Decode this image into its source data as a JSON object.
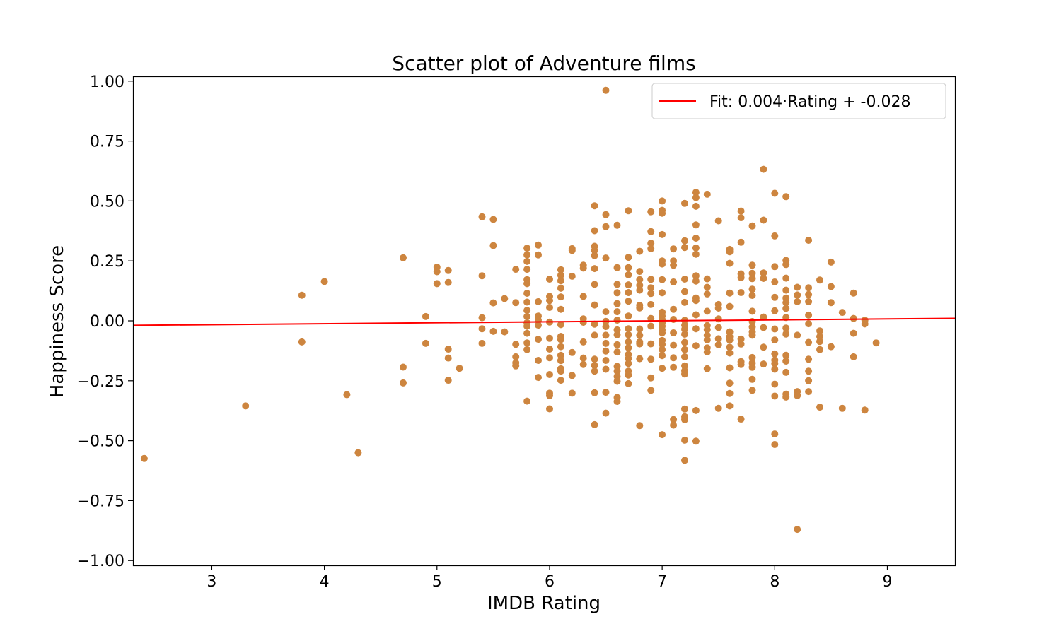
{
  "chart_data": {
    "type": "scatter",
    "title": "Scatter plot of Adventure films",
    "xlabel": "IMDB Rating",
    "ylabel": "Happiness Score",
    "xlim": [
      2.3,
      9.6
    ],
    "ylim": [
      -1.02,
      1.02
    ],
    "x_ticks": [
      3,
      4,
      5,
      6,
      7,
      8,
      9
    ],
    "x_tick_labels": [
      "3",
      "4",
      "5",
      "6",
      "7",
      "8",
      "9"
    ],
    "y_ticks": [
      1.0,
      0.75,
      0.5,
      0.25,
      0.0,
      -0.25,
      -0.5,
      -0.75,
      -1.0
    ],
    "y_tick_labels": [
      "1.00",
      "0.75",
      "0.50",
      "0.25",
      "0.00",
      "−0.25",
      "−0.50",
      "−0.75",
      "−1.00"
    ],
    "grid": false,
    "legend_position": "top-right",
    "marker_color": "#cd853f",
    "fit_line": {
      "label": "Fit: 0.004·Rating + -0.028",
      "slope": 0.004,
      "intercept": -0.028,
      "color": "#ff0000"
    },
    "points": [
      [
        2.4,
        -0.574
      ],
      [
        3.3,
        -0.355
      ],
      [
        3.8,
        0.107
      ],
      [
        3.8,
        -0.088
      ],
      [
        4.0,
        0.164
      ],
      [
        4.2,
        -0.308
      ],
      [
        4.3,
        -0.55
      ],
      [
        4.7,
        0.263
      ],
      [
        4.7,
        -0.193
      ],
      [
        4.7,
        -0.259
      ],
      [
        4.9,
        0.018
      ],
      [
        4.9,
        -0.094
      ],
      [
        5.0,
        0.224
      ],
      [
        5.0,
        0.205
      ],
      [
        5.0,
        0.155
      ],
      [
        5.1,
        0.21
      ],
      [
        5.1,
        0.16
      ],
      [
        5.1,
        -0.118
      ],
      [
        5.1,
        -0.155
      ],
      [
        5.1,
        -0.248
      ],
      [
        5.2,
        -0.198
      ],
      [
        5.4,
        0.434
      ],
      [
        5.4,
        0.188
      ],
      [
        5.4,
        0.013
      ],
      [
        5.4,
        -0.033
      ],
      [
        5.4,
        -0.094
      ],
      [
        5.5,
        0.423
      ],
      [
        5.5,
        0.314
      ],
      [
        5.5,
        0.075
      ],
      [
        5.5,
        -0.044
      ],
      [
        5.6,
        0.093
      ],
      [
        5.6,
        -0.046
      ],
      [
        5.7,
        0.215
      ],
      [
        5.7,
        0.076
      ],
      [
        5.7,
        -0.098
      ],
      [
        5.7,
        -0.15
      ],
      [
        5.7,
        -0.175
      ],
      [
        5.7,
        -0.188
      ],
      [
        5.8,
        0.303
      ],
      [
        5.8,
        0.275
      ],
      [
        5.8,
        0.248
      ],
      [
        5.8,
        0.215
      ],
      [
        5.8,
        0.172
      ],
      [
        5.8,
        0.155
      ],
      [
        5.8,
        0.115
      ],
      [
        5.8,
        0.078
      ],
      [
        5.8,
        0.044
      ],
      [
        5.8,
        0.018
      ],
      [
        5.8,
        -0.008
      ],
      [
        5.8,
        -0.022
      ],
      [
        5.8,
        -0.052
      ],
      [
        5.8,
        -0.092
      ],
      [
        5.8,
        -0.12
      ],
      [
        5.8,
        -0.335
      ],
      [
        5.9,
        0.316
      ],
      [
        5.9,
        0.275
      ],
      [
        5.9,
        0.08
      ],
      [
        5.9,
        0.02
      ],
      [
        5.9,
        0.003
      ],
      [
        5.9,
        -0.018
      ],
      [
        5.9,
        -0.077
      ],
      [
        5.9,
        -0.165
      ],
      [
        5.9,
        -0.236
      ],
      [
        6.0,
        0.174
      ],
      [
        6.0,
        0.102
      ],
      [
        6.0,
        0.085
      ],
      [
        6.0,
        0.056
      ],
      [
        6.0,
        -0.005
      ],
      [
        6.0,
        -0.073
      ],
      [
        6.0,
        -0.118
      ],
      [
        6.0,
        -0.154
      ],
      [
        6.0,
        -0.224
      ],
      [
        6.0,
        -0.302
      ],
      [
        6.0,
        -0.312
      ],
      [
        6.0,
        -0.367
      ],
      [
        6.1,
        0.213
      ],
      [
        6.1,
        0.19
      ],
      [
        6.1,
        0.167
      ],
      [
        6.1,
        0.136
      ],
      [
        6.1,
        0.1
      ],
      [
        6.1,
        0.048
      ],
      [
        6.1,
        -0.016
      ],
      [
        6.1,
        -0.065
      ],
      [
        6.1,
        -0.078
      ],
      [
        6.1,
        -0.108
      ],
      [
        6.1,
        -0.144
      ],
      [
        6.1,
        -0.166
      ],
      [
        6.1,
        -0.2
      ],
      [
        6.1,
        -0.21
      ],
      [
        6.1,
        -0.248
      ],
      [
        6.2,
        0.301
      ],
      [
        6.2,
        0.294
      ],
      [
        6.2,
        0.186
      ],
      [
        6.2,
        -0.132
      ],
      [
        6.2,
        -0.228
      ],
      [
        6.2,
        -0.302
      ],
      [
        6.3,
        0.232
      ],
      [
        6.3,
        0.22
      ],
      [
        6.3,
        0.102
      ],
      [
        6.3,
        0.008
      ],
      [
        6.3,
        -0.006
      ],
      [
        6.3,
        -0.088
      ],
      [
        6.3,
        -0.155
      ],
      [
        6.3,
        -0.182
      ],
      [
        6.4,
        0.48
      ],
      [
        6.4,
        0.376
      ],
      [
        6.4,
        0.311
      ],
      [
        6.4,
        0.294
      ],
      [
        6.4,
        0.272
      ],
      [
        6.4,
        0.218
      ],
      [
        6.4,
        0.152
      ],
      [
        6.4,
        0.066
      ],
      [
        6.4,
        -0.014
      ],
      [
        6.4,
        -0.06
      ],
      [
        6.4,
        -0.16
      ],
      [
        6.4,
        -0.186
      ],
      [
        6.4,
        -0.21
      ],
      [
        6.4,
        -0.3
      ],
      [
        6.4,
        -0.433
      ],
      [
        6.5,
        0.962
      ],
      [
        6.5,
        0.443
      ],
      [
        6.5,
        0.393
      ],
      [
        6.5,
        0.262
      ],
      [
        6.5,
        0.038
      ],
      [
        6.5,
        -0.002
      ],
      [
        6.5,
        -0.024
      ],
      [
        6.5,
        -0.06
      ],
      [
        6.5,
        -0.094
      ],
      [
        6.5,
        -0.126
      ],
      [
        6.5,
        -0.165
      ],
      [
        6.5,
        -0.202
      ],
      [
        6.5,
        -0.298
      ],
      [
        6.5,
        -0.385
      ],
      [
        6.6,
        0.399
      ],
      [
        6.6,
        0.222
      ],
      [
        6.6,
        0.152
      ],
      [
        6.6,
        0.117
      ],
      [
        6.6,
        0.072
      ],
      [
        6.6,
        0.038
      ],
      [
        6.6,
        0.003
      ],
      [
        6.6,
        -0.038
      ],
      [
        6.6,
        -0.058
      ],
      [
        6.6,
        -0.1
      ],
      [
        6.6,
        -0.13
      ],
      [
        6.6,
        -0.19
      ],
      [
        6.6,
        -0.21
      ],
      [
        6.6,
        -0.232
      ],
      [
        6.6,
        -0.252
      ],
      [
        6.6,
        -0.32
      ],
      [
        6.6,
        -0.336
      ],
      [
        6.7,
        0.459
      ],
      [
        6.7,
        0.265
      ],
      [
        6.7,
        0.222
      ],
      [
        6.7,
        0.192
      ],
      [
        6.7,
        0.15
      ],
      [
        6.7,
        0.118
      ],
      [
        6.7,
        0.082
      ],
      [
        6.7,
        0.02
      ],
      [
        6.7,
        -0.033
      ],
      [
        6.7,
        -0.058
      ],
      [
        6.7,
        -0.088
      ],
      [
        6.7,
        -0.112
      ],
      [
        6.7,
        -0.14
      ],
      [
        6.7,
        -0.157
      ],
      [
        6.7,
        -0.178
      ],
      [
        6.7,
        -0.21
      ],
      [
        6.7,
        -0.226
      ],
      [
        6.7,
        -0.262
      ],
      [
        6.8,
        0.29
      ],
      [
        6.8,
        0.206
      ],
      [
        6.8,
        0.172
      ],
      [
        6.8,
        0.148
      ],
      [
        6.8,
        0.128
      ],
      [
        6.8,
        0.065
      ],
      [
        6.8,
        0.054
      ],
      [
        6.8,
        -0.034
      ],
      [
        6.8,
        -0.06
      ],
      [
        6.8,
        -0.088
      ],
      [
        6.8,
        -0.096
      ],
      [
        6.8,
        -0.158
      ],
      [
        6.8,
        -0.437
      ],
      [
        6.9,
        0.455
      ],
      [
        6.9,
        0.372
      ],
      [
        6.9,
        0.324
      ],
      [
        6.9,
        0.301
      ],
      [
        6.9,
        0.173
      ],
      [
        6.9,
        0.138
      ],
      [
        6.9,
        0.114
      ],
      [
        6.9,
        0.068
      ],
      [
        6.9,
        0.01
      ],
      [
        6.9,
        -0.022
      ],
      [
        6.9,
        -0.096
      ],
      [
        6.9,
        -0.16
      ],
      [
        6.9,
        -0.238
      ],
      [
        6.9,
        -0.29
      ],
      [
        7.0,
        0.5
      ],
      [
        7.0,
        0.461
      ],
      [
        7.0,
        0.449
      ],
      [
        7.0,
        0.36
      ],
      [
        7.0,
        0.25
      ],
      [
        7.0,
        0.237
      ],
      [
        7.0,
        0.172
      ],
      [
        7.0,
        0.117
      ],
      [
        7.0,
        0.036
      ],
      [
        7.0,
        0.02
      ],
      [
        7.0,
        0.005
      ],
      [
        7.0,
        -0.008
      ],
      [
        7.0,
        -0.022
      ],
      [
        7.0,
        -0.038
      ],
      [
        7.0,
        -0.05
      ],
      [
        7.0,
        -0.082
      ],
      [
        7.0,
        -0.098
      ],
      [
        7.0,
        -0.12
      ],
      [
        7.0,
        -0.145
      ],
      [
        7.0,
        -0.198
      ],
      [
        7.0,
        -0.475
      ],
      [
        7.1,
        0.3
      ],
      [
        7.1,
        0.25
      ],
      [
        7.1,
        0.232
      ],
      [
        7.1,
        0.162
      ],
      [
        7.1,
        0.048
      ],
      [
        7.1,
        0.006
      ],
      [
        7.1,
        -0.05
      ],
      [
        7.1,
        -0.102
      ],
      [
        7.1,
        -0.154
      ],
      [
        7.1,
        -0.194
      ],
      [
        7.1,
        -0.412
      ],
      [
        7.1,
        -0.435
      ],
      [
        7.2,
        0.49
      ],
      [
        7.2,
        0.334
      ],
      [
        7.2,
        0.306
      ],
      [
        7.2,
        0.174
      ],
      [
        7.2,
        0.122
      ],
      [
        7.2,
        0.077
      ],
      [
        7.2,
        0.002
      ],
      [
        7.2,
        -0.018
      ],
      [
        7.2,
        -0.035
      ],
      [
        7.2,
        -0.056
      ],
      [
        7.2,
        -0.09
      ],
      [
        7.2,
        -0.12
      ],
      [
        7.2,
        -0.15
      ],
      [
        7.2,
        -0.188
      ],
      [
        7.2,
        -0.208
      ],
      [
        7.2,
        -0.222
      ],
      [
        7.2,
        -0.368
      ],
      [
        7.2,
        -0.4
      ],
      [
        7.2,
        -0.412
      ],
      [
        7.2,
        -0.498
      ],
      [
        7.2,
        -0.582
      ],
      [
        7.3,
        0.536
      ],
      [
        7.3,
        0.514
      ],
      [
        7.3,
        0.478
      ],
      [
        7.3,
        0.4
      ],
      [
        7.3,
        0.345
      ],
      [
        7.3,
        0.304
      ],
      [
        7.3,
        0.278
      ],
      [
        7.3,
        0.188
      ],
      [
        7.3,
        0.166
      ],
      [
        7.3,
        0.095
      ],
      [
        7.3,
        0.085
      ],
      [
        7.3,
        0.025
      ],
      [
        7.3,
        -0.033
      ],
      [
        7.3,
        -0.104
      ],
      [
        7.3,
        -0.374
      ],
      [
        7.3,
        -0.502
      ],
      [
        7.4,
        0.528
      ],
      [
        7.4,
        0.175
      ],
      [
        7.4,
        0.14
      ],
      [
        7.4,
        0.112
      ],
      [
        7.4,
        0.04
      ],
      [
        7.4,
        -0.02
      ],
      [
        7.4,
        -0.037
      ],
      [
        7.4,
        -0.06
      ],
      [
        7.4,
        -0.08
      ],
      [
        7.4,
        -0.113
      ],
      [
        7.4,
        -0.13
      ],
      [
        7.4,
        -0.2
      ],
      [
        7.5,
        0.417
      ],
      [
        7.5,
        0.068
      ],
      [
        7.5,
        0.053
      ],
      [
        7.5,
        0.008
      ],
      [
        7.5,
        -0.028
      ],
      [
        7.5,
        -0.075
      ],
      [
        7.5,
        -0.1
      ],
      [
        7.5,
        -0.365
      ],
      [
        7.6,
        0.298
      ],
      [
        7.6,
        0.288
      ],
      [
        7.6,
        0.24
      ],
      [
        7.6,
        0.116
      ],
      [
        7.6,
        0.06
      ],
      [
        7.6,
        -0.046
      ],
      [
        7.6,
        -0.066
      ],
      [
        7.6,
        -0.08
      ],
      [
        7.6,
        -0.11
      ],
      [
        7.6,
        -0.134
      ],
      [
        7.6,
        -0.196
      ],
      [
        7.6,
        -0.26
      ],
      [
        7.6,
        -0.303
      ],
      [
        7.6,
        -0.355
      ],
      [
        7.7,
        0.458
      ],
      [
        7.7,
        0.43
      ],
      [
        7.7,
        0.328
      ],
      [
        7.7,
        0.196
      ],
      [
        7.7,
        0.18
      ],
      [
        7.7,
        0.118
      ],
      [
        7.7,
        -0.076
      ],
      [
        7.7,
        -0.097
      ],
      [
        7.7,
        -0.17
      ],
      [
        7.7,
        -0.182
      ],
      [
        7.7,
        -0.41
      ],
      [
        7.8,
        0.396
      ],
      [
        7.8,
        0.232
      ],
      [
        7.8,
        0.198
      ],
      [
        7.8,
        0.176
      ],
      [
        7.8,
        0.132
      ],
      [
        7.8,
        0.106
      ],
      [
        7.8,
        0.04
      ],
      [
        7.8,
        -0.003
      ],
      [
        7.8,
        -0.026
      ],
      [
        7.8,
        -0.046
      ],
      [
        7.8,
        -0.06
      ],
      [
        7.8,
        -0.153
      ],
      [
        7.8,
        -0.176
      ],
      [
        7.8,
        -0.194
      ],
      [
        7.8,
        -0.244
      ],
      [
        7.8,
        -0.29
      ],
      [
        7.9,
        0.632
      ],
      [
        7.9,
        0.42
      ],
      [
        7.9,
        0.2
      ],
      [
        7.9,
        0.177
      ],
      [
        7.9,
        0.016
      ],
      [
        7.9,
        -0.028
      ],
      [
        7.9,
        -0.11
      ],
      [
        7.9,
        -0.18
      ],
      [
        8.0,
        0.532
      ],
      [
        8.0,
        0.354
      ],
      [
        8.0,
        0.226
      ],
      [
        8.0,
        0.162
      ],
      [
        8.0,
        0.098
      ],
      [
        8.0,
        0.042
      ],
      [
        8.0,
        -0.034
      ],
      [
        8.0,
        -0.08
      ],
      [
        8.0,
        -0.138
      ],
      [
        8.0,
        -0.164
      ],
      [
        8.0,
        -0.178
      ],
      [
        8.0,
        -0.202
      ],
      [
        8.0,
        -0.264
      ],
      [
        8.0,
        -0.314
      ],
      [
        8.0,
        -0.472
      ],
      [
        8.0,
        -0.516
      ],
      [
        8.1,
        0.518
      ],
      [
        8.1,
        0.252
      ],
      [
        8.1,
        0.235
      ],
      [
        8.1,
        0.178
      ],
      [
        8.1,
        0.128
      ],
      [
        8.1,
        0.095
      ],
      [
        8.1,
        0.076
      ],
      [
        8.1,
        0.052
      ],
      [
        8.1,
        0.014
      ],
      [
        8.1,
        -0.03
      ],
      [
        8.1,
        -0.055
      ],
      [
        8.1,
        -0.144
      ],
      [
        8.1,
        -0.168
      ],
      [
        8.1,
        -0.215
      ],
      [
        8.1,
        -0.306
      ],
      [
        8.1,
        -0.318
      ],
      [
        8.2,
        0.14
      ],
      [
        8.2,
        0.108
      ],
      [
        8.2,
        0.08
      ],
      [
        8.2,
        -0.06
      ],
      [
        8.2,
        -0.295
      ],
      [
        8.2,
        -0.312
      ],
      [
        8.2,
        -0.87
      ],
      [
        8.3,
        0.336
      ],
      [
        8.3,
        0.138
      ],
      [
        8.3,
        0.11
      ],
      [
        8.3,
        0.08
      ],
      [
        8.3,
        0.024
      ],
      [
        8.3,
        -0.012
      ],
      [
        8.3,
        -0.09
      ],
      [
        8.3,
        -0.16
      ],
      [
        8.3,
        -0.21
      ],
      [
        8.3,
        -0.25
      ],
      [
        8.3,
        -0.295
      ],
      [
        8.4,
        0.17
      ],
      [
        8.4,
        -0.042
      ],
      [
        8.4,
        -0.066
      ],
      [
        8.4,
        -0.086
      ],
      [
        8.4,
        -0.12
      ],
      [
        8.4,
        -0.36
      ],
      [
        8.5,
        0.245
      ],
      [
        8.5,
        0.143
      ],
      [
        8.5,
        0.076
      ],
      [
        8.5,
        -0.108
      ],
      [
        8.6,
        0.035
      ],
      [
        8.6,
        -0.365
      ],
      [
        8.7,
        0.116
      ],
      [
        8.7,
        0.01
      ],
      [
        8.7,
        -0.052
      ],
      [
        8.7,
        -0.15
      ],
      [
        8.8,
        0.003
      ],
      [
        8.8,
        -0.013
      ],
      [
        8.8,
        -0.372
      ],
      [
        8.9,
        -0.092
      ]
    ]
  }
}
